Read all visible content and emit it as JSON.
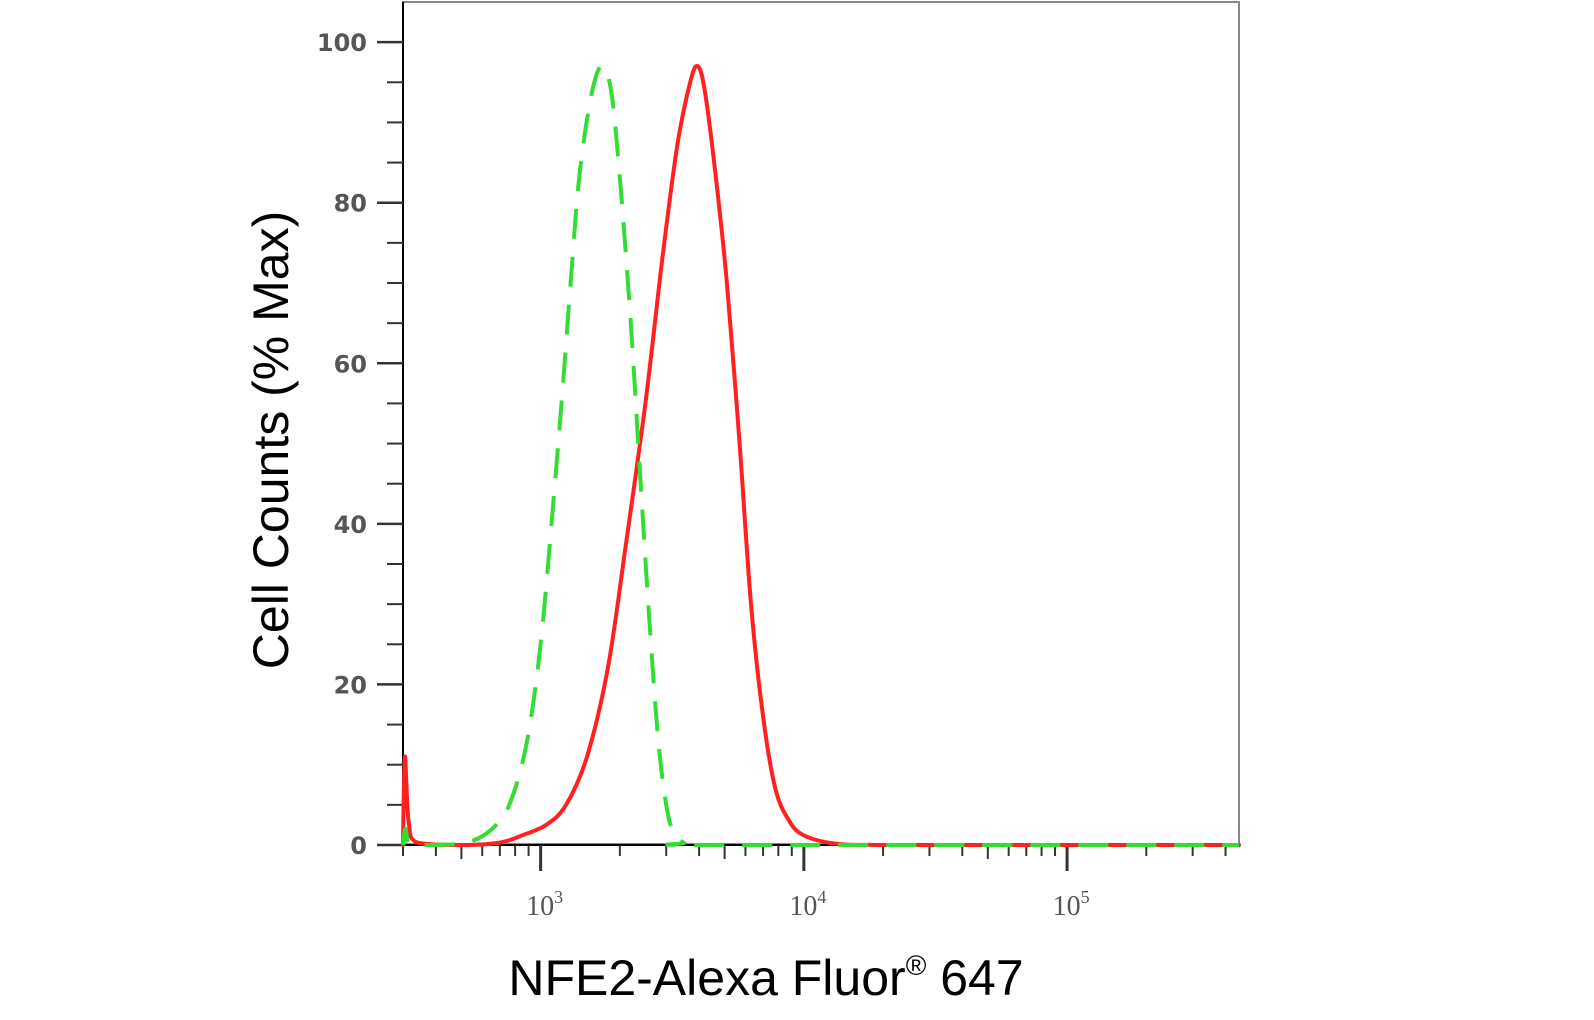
{
  "chart_data": {
    "type": "line",
    "xlabel": "NFE2-Alexa Fluor",
    "xlabel_mark": "®",
    "xlabel_suffix": " 647",
    "ylabel": "Cell Counts (% Max)",
    "x_scale": "log",
    "xlim": [
      300,
      450000
    ],
    "ylim": [
      0,
      105
    ],
    "x_ticks": [
      {
        "base": "10",
        "exp": "3",
        "value": 1000
      },
      {
        "base": "10",
        "exp": "4",
        "value": 10000
      },
      {
        "base": "10",
        "exp": "5",
        "value": 100000
      }
    ],
    "y_ticks": [
      "0",
      "20",
      "40",
      "60",
      "80",
      "100"
    ],
    "y_tick_values": [
      0,
      20,
      40,
      60,
      80,
      100
    ],
    "series": [
      {
        "color": "#ff2020",
        "style": "solid",
        "points": [
          [
            300,
            0
          ],
          [
            305,
            11
          ],
          [
            315,
            3
          ],
          [
            340,
            0.3
          ],
          [
            500,
            0
          ],
          [
            700,
            0.3
          ],
          [
            850,
            1.2
          ],
          [
            1050,
            2.5
          ],
          [
            1250,
            5
          ],
          [
            1500,
            11
          ],
          [
            1800,
            22
          ],
          [
            2100,
            37
          ],
          [
            2500,
            55
          ],
          [
            2900,
            73
          ],
          [
            3300,
            87
          ],
          [
            3700,
            95
          ],
          [
            3950,
            97
          ],
          [
            4200,
            94
          ],
          [
            4600,
            84
          ],
          [
            5100,
            70
          ],
          [
            5700,
            50
          ],
          [
            6300,
            30
          ],
          [
            7000,
            16
          ],
          [
            7800,
            7
          ],
          [
            8800,
            3
          ],
          [
            10000,
            1.2
          ],
          [
            13000,
            0.2
          ],
          [
            20000,
            0
          ],
          [
            100000,
            0
          ],
          [
            450000,
            0
          ]
        ]
      },
      {
        "color": "#33dd33",
        "style": "dashed",
        "points": [
          [
            300,
            0
          ],
          [
            307,
            2
          ],
          [
            320,
            0
          ],
          [
            400,
            0
          ],
          [
            550,
            0.5
          ],
          [
            700,
            3
          ],
          [
            800,
            7
          ],
          [
            900,
            14
          ],
          [
            1000,
            25
          ],
          [
            1100,
            40
          ],
          [
            1200,
            55
          ],
          [
            1300,
            70
          ],
          [
            1400,
            83
          ],
          [
            1550,
            93
          ],
          [
            1700,
            97
          ],
          [
            1850,
            94
          ],
          [
            2000,
            83
          ],
          [
            2200,
            65
          ],
          [
            2400,
            45
          ],
          [
            2600,
            27
          ],
          [
            2800,
            13
          ],
          [
            3000,
            5
          ],
          [
            3200,
            1.5
          ],
          [
            3500,
            0.3
          ],
          [
            4000,
            0
          ],
          [
            100000,
            0
          ],
          [
            450000,
            0
          ]
        ]
      }
    ]
  }
}
